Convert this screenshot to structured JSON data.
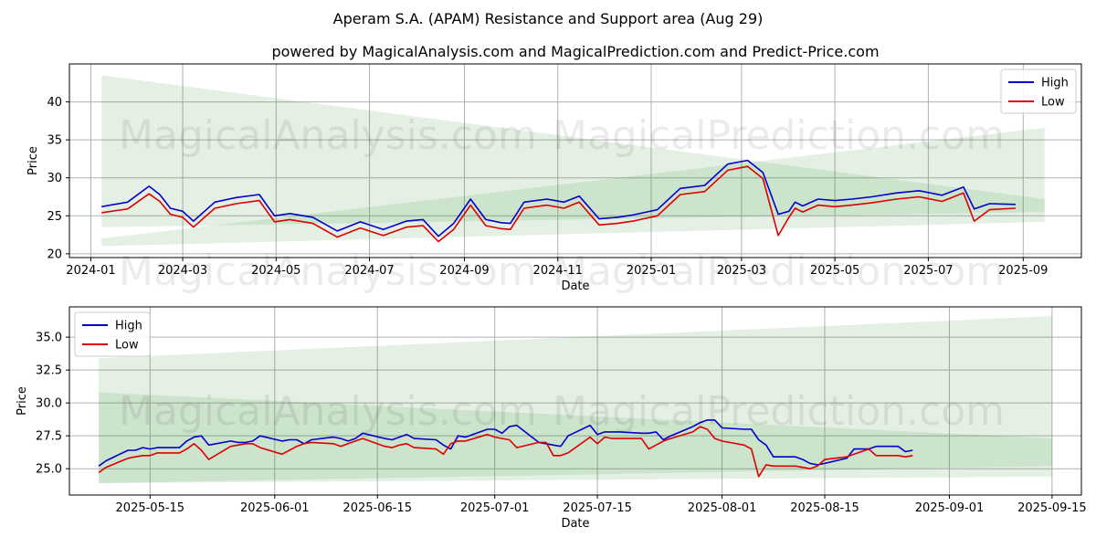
{
  "figure": {
    "title": "Aperam S.A. (APAM) Resistance and Support area (Aug 29)",
    "subtitle": "powered by MagicalAnalysis.com and MagicalPrediction.com and Predict-Price.com",
    "watermarks": [
      "MagicalAnalysis.com",
      "MagicalPrediction.com"
    ]
  },
  "colors": {
    "high": "#0000cc",
    "low": "#dd0000",
    "band": "#2e8b2e"
  },
  "chart_data": [
    {
      "type": "line",
      "xlabel": "Date",
      "ylabel": "Price",
      "xlim": [
        "2023-12-18",
        "2025-10-09"
      ],
      "ylim": [
        19.5,
        45.0
      ],
      "x_ticks": [
        "2024-01",
        "2024-03",
        "2024-05",
        "2024-07",
        "2024-09",
        "2024-11",
        "2025-01",
        "2025-03",
        "2025-05",
        "2025-07",
        "2025-09"
      ],
      "y_ticks": [
        20,
        25,
        30,
        35,
        40
      ],
      "grid": true,
      "legend": "top-right",
      "series": [
        {
          "name": "High",
          "x": [
            "2024-01-08",
            "2024-01-25",
            "2024-02-08",
            "2024-02-15",
            "2024-02-22",
            "2024-03-01",
            "2024-03-08",
            "2024-03-22",
            "2024-04-05",
            "2024-04-20",
            "2024-04-30",
            "2024-05-10",
            "2024-05-25",
            "2024-06-10",
            "2024-06-25",
            "2024-07-10",
            "2024-07-25",
            "2024-08-05",
            "2024-08-15",
            "2024-08-25",
            "2024-09-05",
            "2024-09-15",
            "2024-09-25",
            "2024-10-01",
            "2024-10-10",
            "2024-10-25",
            "2024-11-05",
            "2024-11-15",
            "2024-11-28",
            "2024-12-10",
            "2024-12-20",
            "2025-01-05",
            "2025-01-20",
            "2025-02-05",
            "2025-02-20",
            "2025-03-05",
            "2025-03-15",
            "2025-03-25",
            "2025-04-01",
            "2025-04-05",
            "2025-04-10",
            "2025-04-20",
            "2025-05-01",
            "2025-05-12",
            "2025-05-25",
            "2025-06-10",
            "2025-06-25",
            "2025-07-10",
            "2025-07-24",
            "2025-07-31",
            "2025-08-10",
            "2025-08-27"
          ],
          "values": [
            26.2,
            26.8,
            28.9,
            27.8,
            26.0,
            25.6,
            24.3,
            26.8,
            27.4,
            27.8,
            25.0,
            25.3,
            24.8,
            23.0,
            24.2,
            23.2,
            24.3,
            24.5,
            22.3,
            24.0,
            27.2,
            24.5,
            24.1,
            24.0,
            26.8,
            27.2,
            26.8,
            27.6,
            24.6,
            24.8,
            25.1,
            25.8,
            28.6,
            29.0,
            31.8,
            32.3,
            30.7,
            25.2,
            25.6,
            26.8,
            26.3,
            27.2,
            27.0,
            27.2,
            27.5,
            28.0,
            28.3,
            27.7,
            28.8,
            25.9,
            26.6,
            26.5
          ]
        },
        {
          "name": "Low",
          "x": [
            "2024-01-08",
            "2024-01-25",
            "2024-02-08",
            "2024-02-15",
            "2024-02-22",
            "2024-03-01",
            "2024-03-08",
            "2024-03-22",
            "2024-04-05",
            "2024-04-20",
            "2024-04-30",
            "2024-05-10",
            "2024-05-25",
            "2024-06-10",
            "2024-06-25",
            "2024-07-10",
            "2024-07-25",
            "2024-08-05",
            "2024-08-15",
            "2024-08-25",
            "2024-09-05",
            "2024-09-15",
            "2024-09-25",
            "2024-10-01",
            "2024-10-10",
            "2024-10-25",
            "2024-11-05",
            "2024-11-15",
            "2024-11-28",
            "2024-12-10",
            "2024-12-20",
            "2025-01-05",
            "2025-01-20",
            "2025-02-05",
            "2025-02-20",
            "2025-03-05",
            "2025-03-15",
            "2025-03-25",
            "2025-04-01",
            "2025-04-05",
            "2025-04-10",
            "2025-04-20",
            "2025-05-01",
            "2025-05-12",
            "2025-05-25",
            "2025-06-10",
            "2025-06-25",
            "2025-07-10",
            "2025-07-24",
            "2025-07-31",
            "2025-08-10",
            "2025-08-27"
          ],
          "values": [
            25.4,
            25.9,
            27.9,
            26.9,
            25.2,
            24.8,
            23.5,
            26.0,
            26.6,
            27.0,
            24.2,
            24.5,
            24.0,
            22.2,
            23.4,
            22.4,
            23.5,
            23.7,
            21.6,
            23.2,
            26.4,
            23.7,
            23.3,
            23.2,
            26.0,
            26.4,
            26.0,
            26.8,
            23.8,
            24.0,
            24.3,
            25.0,
            27.8,
            28.2,
            31.0,
            31.5,
            29.9,
            22.4,
            24.8,
            26.0,
            25.5,
            26.4,
            26.2,
            26.4,
            26.7,
            27.2,
            27.5,
            26.9,
            28.0,
            24.3,
            25.8,
            26.0
          ]
        }
      ],
      "bands": [
        {
          "x": [
            "2024-01-08",
            "2025-09-15"
          ],
          "upper": [
            43.5,
            27.2
          ],
          "lower": [
            23.5,
            25.5
          ]
        },
        {
          "x": [
            "2024-01-08",
            "2025-09-15"
          ],
          "upper": [
            22.0,
            36.6
          ],
          "lower": [
            21.0,
            24.2
          ]
        }
      ]
    },
    {
      "type": "line",
      "xlabel": "Date",
      "ylabel": "Price",
      "xlim": [
        "2025-05-04",
        "2025-09-19"
      ],
      "ylim": [
        23.0,
        37.3
      ],
      "x_ticks": [
        "2025-05-15",
        "2025-06-01",
        "2025-06-15",
        "2025-07-01",
        "2025-07-15",
        "2025-08-01",
        "2025-08-15",
        "2025-09-01",
        "2025-09-15"
      ],
      "y_ticks": [
        25.0,
        27.5,
        30.0,
        32.5,
        35.0
      ],
      "grid": true,
      "legend": "top-left",
      "series": [
        {
          "name": "High",
          "x": [
            "2025-05-08",
            "2025-05-09",
            "2025-05-12",
            "2025-05-13",
            "2025-05-14",
            "2025-05-15",
            "2025-05-16",
            "2025-05-19",
            "2025-05-20",
            "2025-05-21",
            "2025-05-22",
            "2025-05-23",
            "2025-05-26",
            "2025-05-27",
            "2025-05-28",
            "2025-05-29",
            "2025-05-30",
            "2025-06-02",
            "2025-06-03",
            "2025-06-04",
            "2025-06-05",
            "2025-06-06",
            "2025-06-09",
            "2025-06-10",
            "2025-06-11",
            "2025-06-12",
            "2025-06-13",
            "2025-06-16",
            "2025-06-17",
            "2025-06-18",
            "2025-06-19",
            "2025-06-20",
            "2025-06-23",
            "2025-06-24",
            "2025-06-25",
            "2025-06-26",
            "2025-06-27",
            "2025-06-30",
            "2025-07-01",
            "2025-07-02",
            "2025-07-03",
            "2025-07-04",
            "2025-07-07",
            "2025-07-08",
            "2025-07-09",
            "2025-07-10",
            "2025-07-11",
            "2025-07-14",
            "2025-07-15",
            "2025-07-16",
            "2025-07-17",
            "2025-07-18",
            "2025-07-21",
            "2025-07-22",
            "2025-07-23",
            "2025-07-24",
            "2025-07-25",
            "2025-07-28",
            "2025-07-29",
            "2025-07-30",
            "2025-07-31",
            "2025-08-01",
            "2025-08-04",
            "2025-08-05",
            "2025-08-06",
            "2025-08-07",
            "2025-08-08",
            "2025-08-11",
            "2025-08-12",
            "2025-08-13",
            "2025-08-14",
            "2025-08-15",
            "2025-08-18",
            "2025-08-19",
            "2025-08-20",
            "2025-08-21",
            "2025-08-22",
            "2025-08-25",
            "2025-08-26",
            "2025-08-27"
          ],
          "values": [
            25.2,
            25.6,
            26.4,
            26.4,
            26.6,
            26.5,
            26.6,
            26.6,
            27.1,
            27.4,
            27.5,
            26.8,
            27.1,
            27.0,
            27.0,
            27.1,
            27.5,
            27.1,
            27.2,
            27.2,
            26.9,
            27.2,
            27.4,
            27.3,
            27.1,
            27.3,
            27.7,
            27.3,
            27.2,
            27.4,
            27.6,
            27.3,
            27.2,
            26.8,
            26.5,
            27.5,
            27.4,
            28.0,
            28.0,
            27.7,
            28.2,
            28.3,
            27.0,
            26.9,
            26.8,
            26.7,
            27.5,
            28.3,
            27.6,
            27.8,
            27.8,
            27.8,
            27.7,
            27.7,
            27.8,
            27.2,
            27.5,
            28.2,
            28.5,
            28.7,
            28.7,
            28.1,
            28.0,
            28.0,
            27.2,
            26.8,
            25.9,
            25.9,
            25.7,
            25.4,
            25.3,
            25.4,
            25.8,
            26.5,
            26.5,
            26.5,
            26.7,
            26.7,
            26.3,
            26.4
          ]
        },
        {
          "name": "Low",
          "x": [
            "2025-05-08",
            "2025-05-09",
            "2025-05-12",
            "2025-05-13",
            "2025-05-14",
            "2025-05-15",
            "2025-05-16",
            "2025-05-19",
            "2025-05-20",
            "2025-05-21",
            "2025-05-22",
            "2025-05-23",
            "2025-05-26",
            "2025-05-27",
            "2025-05-28",
            "2025-05-29",
            "2025-05-30",
            "2025-06-02",
            "2025-06-03",
            "2025-06-04",
            "2025-06-05",
            "2025-06-06",
            "2025-06-09",
            "2025-06-10",
            "2025-06-11",
            "2025-06-12",
            "2025-06-13",
            "2025-06-16",
            "2025-06-17",
            "2025-06-18",
            "2025-06-19",
            "2025-06-20",
            "2025-06-23",
            "2025-06-24",
            "2025-06-25",
            "2025-06-26",
            "2025-06-27",
            "2025-06-30",
            "2025-07-01",
            "2025-07-02",
            "2025-07-03",
            "2025-07-04",
            "2025-07-07",
            "2025-07-08",
            "2025-07-09",
            "2025-07-10",
            "2025-07-11",
            "2025-07-14",
            "2025-07-15",
            "2025-07-16",
            "2025-07-17",
            "2025-07-18",
            "2025-07-21",
            "2025-07-22",
            "2025-07-23",
            "2025-07-24",
            "2025-07-25",
            "2025-07-28",
            "2025-07-29",
            "2025-07-30",
            "2025-07-31",
            "2025-08-01",
            "2025-08-04",
            "2025-08-05",
            "2025-08-06",
            "2025-08-07",
            "2025-08-08",
            "2025-08-11",
            "2025-08-12",
            "2025-08-13",
            "2025-08-14",
            "2025-08-15",
            "2025-08-18",
            "2025-08-19",
            "2025-08-20",
            "2025-08-21",
            "2025-08-22",
            "2025-08-25",
            "2025-08-26",
            "2025-08-27"
          ],
          "values": [
            24.7,
            25.1,
            25.8,
            25.9,
            26.0,
            26.0,
            26.2,
            26.2,
            26.5,
            26.9,
            26.4,
            25.7,
            26.7,
            26.8,
            26.9,
            26.9,
            26.6,
            26.1,
            26.4,
            26.7,
            26.9,
            27.0,
            26.9,
            26.7,
            26.9,
            27.1,
            27.3,
            26.7,
            26.6,
            26.8,
            26.9,
            26.6,
            26.5,
            26.1,
            26.9,
            27.1,
            27.1,
            27.6,
            27.4,
            27.3,
            27.2,
            26.6,
            27.0,
            27.0,
            26.0,
            26.0,
            26.2,
            27.4,
            26.9,
            27.4,
            27.3,
            27.3,
            27.3,
            26.5,
            26.8,
            27.1,
            27.3,
            27.8,
            28.2,
            28.0,
            27.3,
            27.1,
            26.8,
            26.5,
            24.4,
            25.3,
            25.2,
            25.2,
            25.1,
            25.0,
            25.2,
            25.7,
            25.9,
            26.1,
            26.3,
            26.5,
            26.0,
            26.0,
            25.9,
            26.0
          ]
        }
      ],
      "bands": [
        {
          "x": [
            "2025-05-08",
            "2025-09-15"
          ],
          "upper": [
            30.8,
            27.3
          ],
          "lower": [
            23.9,
            25.2
          ]
        },
        {
          "x": [
            "2025-05-08",
            "2025-09-15"
          ],
          "upper": [
            33.4,
            36.6
          ],
          "lower": [
            23.9,
            24.4
          ]
        }
      ]
    }
  ]
}
